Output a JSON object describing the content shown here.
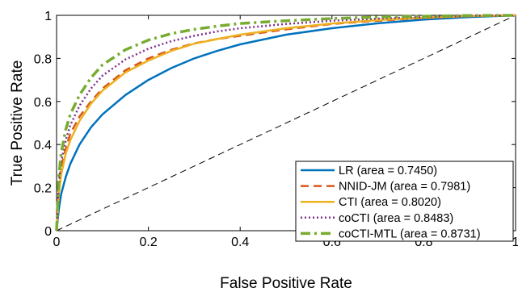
{
  "chart_data": {
    "type": "line",
    "xlabel": "False Positive Rate",
    "ylabel": "True Positive Rate",
    "xlim": [
      0,
      1
    ],
    "ylim": [
      0,
      1
    ],
    "xticks": [
      "0",
      "0.2",
      "0.4",
      "0.6",
      "0.8",
      "1"
    ],
    "yticks": [
      "0",
      "0.2",
      "0.4",
      "0.6",
      "0.8",
      "1"
    ],
    "grid": false,
    "legend_position": "bottom-right",
    "diagonal": {
      "x": [
        0,
        1
      ],
      "y": [
        0,
        1
      ],
      "style": "dashed",
      "color": "#000000"
    },
    "series": [
      {
        "name": "LR (area = 0.7450)",
        "color": "#0072BD",
        "style": "solid",
        "x": [
          0,
          0.005,
          0.01,
          0.02,
          0.03,
          0.05,
          0.075,
          0.1,
          0.15,
          0.2,
          0.25,
          0.3,
          0.35,
          0.4,
          0.5,
          0.6,
          0.7,
          0.8,
          0.9,
          1.0
        ],
        "y": [
          0,
          0.1,
          0.17,
          0.25,
          0.31,
          0.4,
          0.48,
          0.54,
          0.63,
          0.7,
          0.755,
          0.8,
          0.835,
          0.865,
          0.91,
          0.94,
          0.963,
          0.98,
          0.992,
          1.0
        ]
      },
      {
        "name": "NNID-JM (area = 0.7981)",
        "color": "#D95319",
        "style": "dashed",
        "x": [
          0,
          0.005,
          0.01,
          0.02,
          0.03,
          0.05,
          0.075,
          0.1,
          0.15,
          0.2,
          0.25,
          0.3,
          0.35,
          0.4,
          0.5,
          0.6,
          0.7,
          0.8,
          0.9,
          1.0
        ],
        "y": [
          0,
          0.2,
          0.3,
          0.38,
          0.45,
          0.53,
          0.6,
          0.66,
          0.745,
          0.8,
          0.84,
          0.87,
          0.89,
          0.905,
          0.935,
          0.96,
          0.975,
          0.988,
          0.996,
          1.0
        ]
      },
      {
        "name": "CTI (area = 0.8020)",
        "color": "#EDB120",
        "style": "solid",
        "x": [
          0,
          0.005,
          0.01,
          0.02,
          0.03,
          0.05,
          0.075,
          0.1,
          0.15,
          0.2,
          0.25,
          0.3,
          0.35,
          0.4,
          0.5,
          0.6,
          0.7,
          0.8,
          0.9,
          1.0
        ],
        "y": [
          0,
          0.17,
          0.26,
          0.36,
          0.42,
          0.51,
          0.59,
          0.65,
          0.735,
          0.79,
          0.835,
          0.868,
          0.89,
          0.91,
          0.94,
          0.962,
          0.978,
          0.99,
          0.997,
          1.0
        ]
      },
      {
        "name": "coCTI (area = 0.8483)",
        "color": "#7E2F8E",
        "style": "dotted",
        "x": [
          0,
          0.005,
          0.01,
          0.02,
          0.03,
          0.05,
          0.075,
          0.1,
          0.15,
          0.2,
          0.25,
          0.3,
          0.35,
          0.4,
          0.5,
          0.6,
          0.7,
          0.8,
          0.9,
          1.0
        ],
        "y": [
          0,
          0.22,
          0.32,
          0.42,
          0.49,
          0.58,
          0.66,
          0.72,
          0.795,
          0.845,
          0.88,
          0.905,
          0.925,
          0.94,
          0.96,
          0.975,
          0.985,
          0.993,
          0.998,
          1.0
        ]
      },
      {
        "name": "coCTI-MTL (area = 0.8731)",
        "color": "#77AC30",
        "style": "dashdot",
        "x": [
          0,
          0.005,
          0.01,
          0.02,
          0.03,
          0.05,
          0.075,
          0.1,
          0.15,
          0.2,
          0.25,
          0.3,
          0.35,
          0.4,
          0.5,
          0.6,
          0.7,
          0.8,
          0.9,
          1.0
        ],
        "y": [
          0,
          0.25,
          0.36,
          0.47,
          0.54,
          0.63,
          0.71,
          0.77,
          0.84,
          0.885,
          0.915,
          0.935,
          0.95,
          0.962,
          0.975,
          0.985,
          0.992,
          0.996,
          0.999,
          1.0
        ]
      }
    ]
  }
}
